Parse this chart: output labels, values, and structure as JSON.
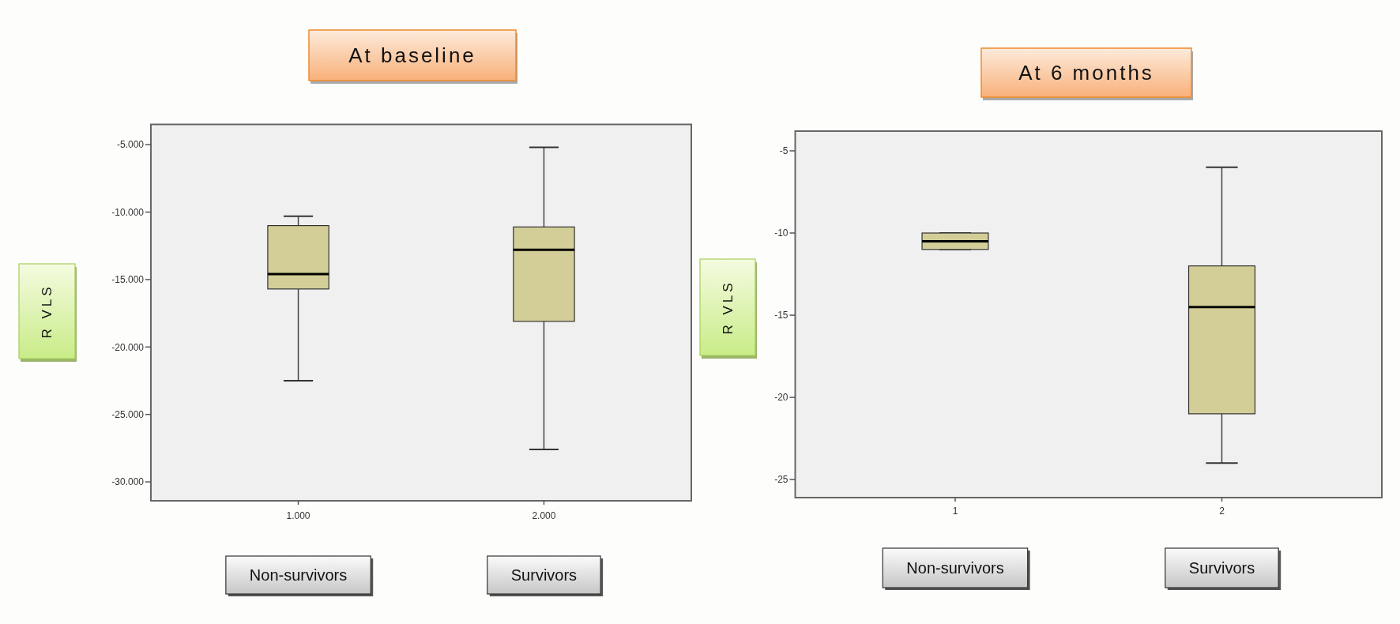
{
  "chart_data": [
    {
      "type": "box",
      "title": "At baseline",
      "ylabel": "R VLS",
      "categories": [
        "1.000",
        "2.000"
      ],
      "boxes": [
        {
          "low": -22.5,
          "q1": -15.7,
          "median": -14.6,
          "q3": -11.0,
          "high": -10.3
        },
        {
          "low": -27.6,
          "q1": -18.1,
          "median": -12.8,
          "q3": -11.1,
          "high": -5.2
        }
      ],
      "color": "#d3ce97",
      "ylim": [
        -31.4,
        -3.5
      ],
      "yticks": [
        {
          "value": -30,
          "label": "-30.000"
        },
        {
          "value": -25,
          "label": "-25.000"
        },
        {
          "value": -20,
          "label": "-20.000"
        },
        {
          "value": -15,
          "label": "-15.000"
        },
        {
          "value": -10,
          "label": "-10.000"
        },
        {
          "value": -5,
          "label": "-5.000"
        }
      ],
      "annotations": [
        "Non-survivors",
        "Survivors"
      ]
    },
    {
      "type": "box",
      "title": "At 6 months",
      "ylabel": "R VLS",
      "categories": [
        "1",
        "2"
      ],
      "boxes": [
        {
          "low": -11.0,
          "q1": -11.0,
          "median": -10.5,
          "q3": -10.0,
          "high": -10.0
        },
        {
          "low": -24.0,
          "q1": -21.0,
          "median": -14.5,
          "q3": -12.0,
          "high": -6.0
        }
      ],
      "color": "#d3ce97",
      "ylim": [
        -26.1,
        -3.8
      ],
      "yticks": [
        -25,
        -20,
        -15,
        -10,
        -5
      ],
      "annotations": [
        "Non-survivors",
        "Survivors"
      ]
    }
  ]
}
